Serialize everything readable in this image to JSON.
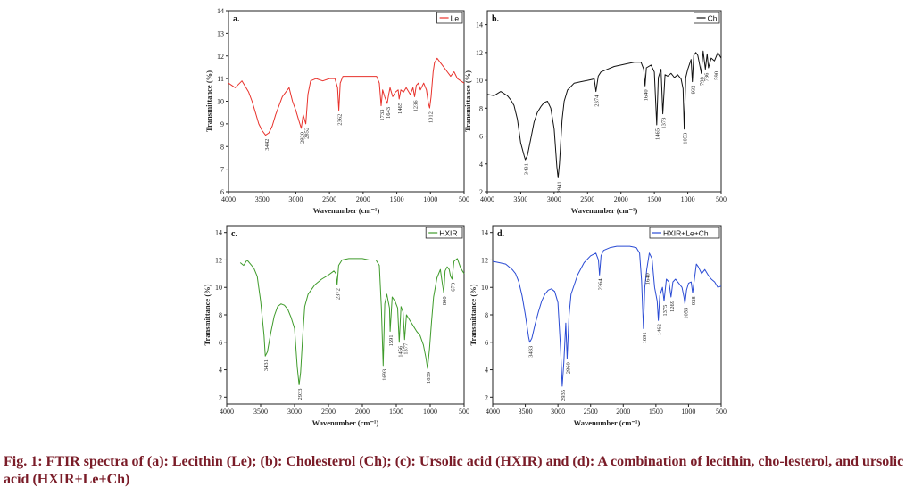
{
  "caption": {
    "lead": "Fig. 1:",
    "text": "FTIR spectra of (a): Lecithin (Le); (b): Cholesterol (Ch); (c): Ursolic acid (HXIR) and (d): A combination of lecithin, cho-lesterol, and ursolic acid (HXIR+Le+Ch)"
  },
  "chart_data": [
    {
      "type": "line",
      "panel_label": "a.",
      "xlabel": "Wavenumber (cm⁻¹)",
      "ylabel": "Transmittance (%)",
      "xlim": [
        4000,
        500
      ],
      "ylim": [
        6,
        14
      ],
      "xticks": [
        4000,
        3500,
        3000,
        2500,
        2000,
        1500,
        1000,
        500
      ],
      "yticks": [
        6,
        7,
        8,
        9,
        10,
        11,
        12,
        13,
        14
      ],
      "legend": "top-right",
      "color": "#e8322c",
      "series": [
        {
          "name": "Le",
          "x": [
            4000,
            3900,
            3800,
            3700,
            3650,
            3600,
            3550,
            3500,
            3450,
            3400,
            3350,
            3300,
            3200,
            3100,
            3050,
            3000,
            2960,
            2920,
            2890,
            2852,
            2820,
            2780,
            2700,
            2600,
            2500,
            2420,
            2380,
            2362,
            2340,
            2300,
            2200,
            2100,
            2000,
            1900,
            1800,
            1760,
            1733,
            1710,
            1680,
            1643,
            1620,
            1600,
            1560,
            1520,
            1480,
            1465,
            1440,
            1400,
            1360,
            1300,
            1260,
            1236,
            1210,
            1180,
            1150,
            1100,
            1060,
            1030,
            1012,
            990,
            960,
            940,
            900,
            850,
            800,
            750,
            700,
            650,
            600,
            550,
            500
          ],
          "y": [
            10.8,
            10.6,
            10.9,
            10.4,
            10.0,
            9.5,
            9.0,
            8.7,
            8.5,
            8.6,
            8.9,
            9.4,
            10.2,
            10.6,
            10.0,
            9.6,
            9.2,
            8.8,
            9.4,
            9.0,
            10.3,
            10.9,
            11.0,
            10.9,
            11.0,
            11.0,
            10.6,
            9.6,
            10.8,
            11.1,
            11.1,
            11.1,
            11.1,
            11.1,
            11.1,
            10.8,
            9.8,
            10.5,
            10.2,
            9.9,
            10.3,
            10.6,
            10.2,
            10.4,
            10.5,
            10.1,
            10.5,
            10.4,
            10.6,
            10.3,
            10.6,
            10.2,
            10.7,
            10.8,
            10.5,
            10.8,
            10.5,
            9.9,
            9.7,
            10.2,
            11.3,
            11.7,
            11.9,
            11.7,
            11.5,
            11.3,
            11.1,
            11.3,
            11.0,
            10.9,
            10.8
          ]
        }
      ],
      "annotations": [
        {
          "label": "3442",
          "x": 3442,
          "y": 8.5
        },
        {
          "label": "2920",
          "x": 2920,
          "y": 8.8
        },
        {
          "label": "2852",
          "x": 2852,
          "y": 9.0
        },
        {
          "label": "2362",
          "x": 2362,
          "y": 9.6
        },
        {
          "label": "1733",
          "x": 1733,
          "y": 9.8
        },
        {
          "label": "1643",
          "x": 1643,
          "y": 9.9
        },
        {
          "label": "1465",
          "x": 1465,
          "y": 10.1
        },
        {
          "label": "1236",
          "x": 1236,
          "y": 10.2
        },
        {
          "label": "1012",
          "x": 1012,
          "y": 9.7
        }
      ]
    },
    {
      "type": "line",
      "panel_label": "b.",
      "xlabel": "Wavenumber (cm⁻¹)",
      "ylabel": "Transmittance (%)",
      "xlim": [
        4000,
        500
      ],
      "ylim": [
        2,
        15
      ],
      "xticks": [
        4000,
        3500,
        3000,
        2500,
        2000,
        1500,
        1000,
        500
      ],
      "yticks": [
        2,
        4,
        6,
        8,
        10,
        12,
        14
      ],
      "legend": "top-right",
      "color": "#111111",
      "series": [
        {
          "name": "Ch",
          "x": [
            4000,
            3900,
            3800,
            3700,
            3650,
            3600,
            3550,
            3500,
            3450,
            3431,
            3400,
            3350,
            3300,
            3250,
            3200,
            3150,
            3100,
            3050,
            3000,
            2960,
            2941,
            2920,
            2880,
            2850,
            2800,
            2700,
            2600,
            2500,
            2400,
            2374,
            2340,
            2300,
            2200,
            2100,
            2000,
            1900,
            1800,
            1700,
            1660,
            1640,
            1620,
            1550,
            1500,
            1465,
            1440,
            1400,
            1373,
            1340,
            1300,
            1250,
            1200,
            1150,
            1100,
            1070,
            1053,
            1030,
            1000,
            950,
            932,
            910,
            880,
            850,
            800,
            798,
            770,
            736,
            710,
            690,
            650,
            600,
            550,
            500
          ],
          "y": [
            9.0,
            8.9,
            9.2,
            8.9,
            8.6,
            8.2,
            7.2,
            5.5,
            4.6,
            4.3,
            4.6,
            5.8,
            7.0,
            7.7,
            8.1,
            8.4,
            8.5,
            8.0,
            6.5,
            3.8,
            3.0,
            4.0,
            7.2,
            8.5,
            9.3,
            9.8,
            9.9,
            10.0,
            10.1,
            9.2,
            10.3,
            10.6,
            10.8,
            11.0,
            11.1,
            11.2,
            11.3,
            11.3,
            10.8,
            9.6,
            10.9,
            11.1,
            10.6,
            6.8,
            10.2,
            10.8,
            7.6,
            10.4,
            10.3,
            10.5,
            10.2,
            10.4,
            10.1,
            9.4,
            6.5,
            10.2,
            10.8,
            11.5,
            9.9,
            11.8,
            12.0,
            11.8,
            10.6,
            10.5,
            12.1,
            10.8,
            11.9,
            10.9,
            11.6,
            11.4,
            12.0,
            11.6
          ]
        }
      ],
      "annotations": [
        {
          "label": "3431",
          "x": 3431,
          "y": 4.3
        },
        {
          "label": "2941",
          "x": 2941,
          "y": 3.0
        },
        {
          "label": "2374",
          "x": 2374,
          "y": 9.2
        },
        {
          "label": "1640",
          "x": 1640,
          "y": 9.6
        },
        {
          "label": "1465",
          "x": 1465,
          "y": 6.8
        },
        {
          "label": "1373",
          "x": 1373,
          "y": 7.6
        },
        {
          "label": "1053",
          "x": 1053,
          "y": 6.5
        },
        {
          "label": "932",
          "x": 932,
          "y": 9.9
        },
        {
          "label": "798",
          "x": 798,
          "y": 10.5
        },
        {
          "label": "736",
          "x": 736,
          "y": 10.8
        },
        {
          "label": "590",
          "x": 590,
          "y": 10.9
        }
      ]
    },
    {
      "type": "line",
      "panel_label": "c.",
      "xlabel": "Wavenumber (cm⁻¹)",
      "ylabel": "Transmittance (%)",
      "xlim": [
        4000,
        500
      ],
      "ylim": [
        1.5,
        14.5
      ],
      "xticks": [
        4000,
        3500,
        3000,
        2500,
        2000,
        1500,
        1000,
        500
      ],
      "yticks": [
        2,
        4,
        6,
        8,
        10,
        12,
        14
      ],
      "legend": "top-right",
      "color": "#3f9b2b",
      "series": [
        {
          "name": "HXIR",
          "x": [
            3800,
            3750,
            3700,
            3650,
            3600,
            3550,
            3500,
            3450,
            3431,
            3400,
            3350,
            3300,
            3250,
            3200,
            3150,
            3100,
            3050,
            3000,
            2960,
            2933,
            2910,
            2880,
            2850,
            2800,
            2700,
            2600,
            2500,
            2420,
            2390,
            2372,
            2350,
            2300,
            2200,
            2100,
            2000,
            1900,
            1800,
            1750,
            1720,
            1693,
            1670,
            1640,
            1600,
            1591,
            1560,
            1520,
            1480,
            1456,
            1430,
            1400,
            1377,
            1350,
            1300,
            1250,
            1200,
            1150,
            1100,
            1060,
            1039,
            1010,
            980,
            950,
            900,
            850,
            830,
            800,
            780,
            750,
            720,
            700,
            678,
            650,
            600,
            550,
            500
          ],
          "y": [
            11.8,
            11.6,
            12.0,
            11.7,
            11.4,
            10.8,
            9.0,
            6.5,
            5.0,
            5.3,
            6.7,
            7.9,
            8.6,
            8.8,
            8.7,
            8.4,
            7.8,
            7.0,
            4.2,
            2.9,
            3.8,
            6.4,
            8.6,
            9.5,
            10.2,
            10.6,
            10.9,
            11.2,
            11.0,
            10.2,
            11.6,
            12.0,
            12.1,
            12.1,
            12.1,
            12.0,
            12.0,
            11.6,
            8.5,
            4.3,
            8.8,
            9.5,
            8.5,
            6.8,
            9.3,
            9.0,
            8.5,
            6.0,
            8.6,
            8.2,
            6.2,
            8.0,
            7.6,
            7.2,
            6.8,
            6.5,
            5.8,
            4.8,
            4.1,
            5.5,
            7.5,
            9.3,
            10.7,
            11.3,
            10.6,
            9.6,
            11.2,
            11.5,
            11.3,
            10.8,
            10.6,
            11.9,
            12.1,
            11.4,
            11.0
          ]
        }
      ],
      "annotations": [
        {
          "label": "3431",
          "x": 3431,
          "y": 5.0
        },
        {
          "label": "2933",
          "x": 2933,
          "y": 2.9
        },
        {
          "label": "2372",
          "x": 2372,
          "y": 10.2
        },
        {
          "label": "1693",
          "x": 1693,
          "y": 4.3
        },
        {
          "label": "1591",
          "x": 1591,
          "y": 6.8
        },
        {
          "label": "1456",
          "x": 1456,
          "y": 6.0
        },
        {
          "label": "1377",
          "x": 1377,
          "y": 6.2
        },
        {
          "label": "1039",
          "x": 1039,
          "y": 4.1
        },
        {
          "label": "800",
          "x": 800,
          "y": 9.6
        },
        {
          "label": "678",
          "x": 678,
          "y": 10.6
        }
      ]
    },
    {
      "type": "line",
      "panel_label": "d.",
      "xlabel": "Wavenumber (cm⁻¹)",
      "ylabel": "Transmittance (%)",
      "xlim": [
        4000,
        500
      ],
      "ylim": [
        1.5,
        14.5
      ],
      "xticks": [
        4000,
        3500,
        3000,
        2500,
        2000,
        1500,
        1000,
        500
      ],
      "yticks": [
        2,
        4,
        6,
        8,
        10,
        12,
        14
      ],
      "legend": "top-right",
      "color": "#2a4bd4",
      "series": [
        {
          "name": "HXIR+Le+Ch",
          "x": [
            4000,
            3900,
            3800,
            3700,
            3650,
            3600,
            3550,
            3500,
            3450,
            3433,
            3400,
            3350,
            3300,
            3250,
            3200,
            3150,
            3100,
            3050,
            3000,
            2960,
            2935,
            2910,
            2880,
            2860,
            2830,
            2800,
            2700,
            2600,
            2500,
            2420,
            2380,
            2364,
            2340,
            2300,
            2200,
            2100,
            2000,
            1900,
            1800,
            1750,
            1720,
            1691,
            1670,
            1640,
            1600,
            1560,
            1520,
            1480,
            1462,
            1440,
            1400,
            1375,
            1340,
            1300,
            1269,
            1240,
            1200,
            1150,
            1100,
            1070,
            1055,
            1030,
            1000,
            960,
            938,
            910,
            880,
            850,
            800,
            750,
            700,
            650,
            600,
            550,
            500
          ],
          "y": [
            11.9,
            11.8,
            11.7,
            11.3,
            11.0,
            10.4,
            9.4,
            8.0,
            6.4,
            6.0,
            6.3,
            7.3,
            8.2,
            9.0,
            9.5,
            9.8,
            9.9,
            9.7,
            8.9,
            5.5,
            2.8,
            4.5,
            7.4,
            4.8,
            8.0,
            9.5,
            10.9,
            11.8,
            12.3,
            12.5,
            12.0,
            10.9,
            12.3,
            12.7,
            12.9,
            13.0,
            13.0,
            13.0,
            12.9,
            12.5,
            10.5,
            7.0,
            10.0,
            11.3,
            12.5,
            12.1,
            10.0,
            9.0,
            7.6,
            9.4,
            10.0,
            9.0,
            10.6,
            10.4,
            9.3,
            10.4,
            10.6,
            10.3,
            10.0,
            9.3,
            8.8,
            9.8,
            10.3,
            10.4,
            9.6,
            10.6,
            11.7,
            11.5,
            11.0,
            11.3,
            10.9,
            10.6,
            10.4,
            10.0,
            10.1
          ]
        }
      ],
      "annotations": [
        {
          "label": "3433",
          "x": 3433,
          "y": 6.0
        },
        {
          "label": "2935",
          "x": 2935,
          "y": 2.8
        },
        {
          "label": "2860",
          "x": 2860,
          "y": 4.8
        },
        {
          "label": "2364",
          "x": 2364,
          "y": 10.9
        },
        {
          "label": "1691",
          "x": 1691,
          "y": 7.0
        },
        {
          "label": "1640",
          "x": 1640,
          "y": 11.3
        },
        {
          "label": "1462",
          "x": 1462,
          "y": 7.6
        },
        {
          "label": "1375",
          "x": 1375,
          "y": 9.0
        },
        {
          "label": "1269",
          "x": 1269,
          "y": 9.3
        },
        {
          "label": "1055",
          "x": 1055,
          "y": 8.8
        },
        {
          "label": "938",
          "x": 938,
          "y": 9.6
        }
      ]
    }
  ]
}
